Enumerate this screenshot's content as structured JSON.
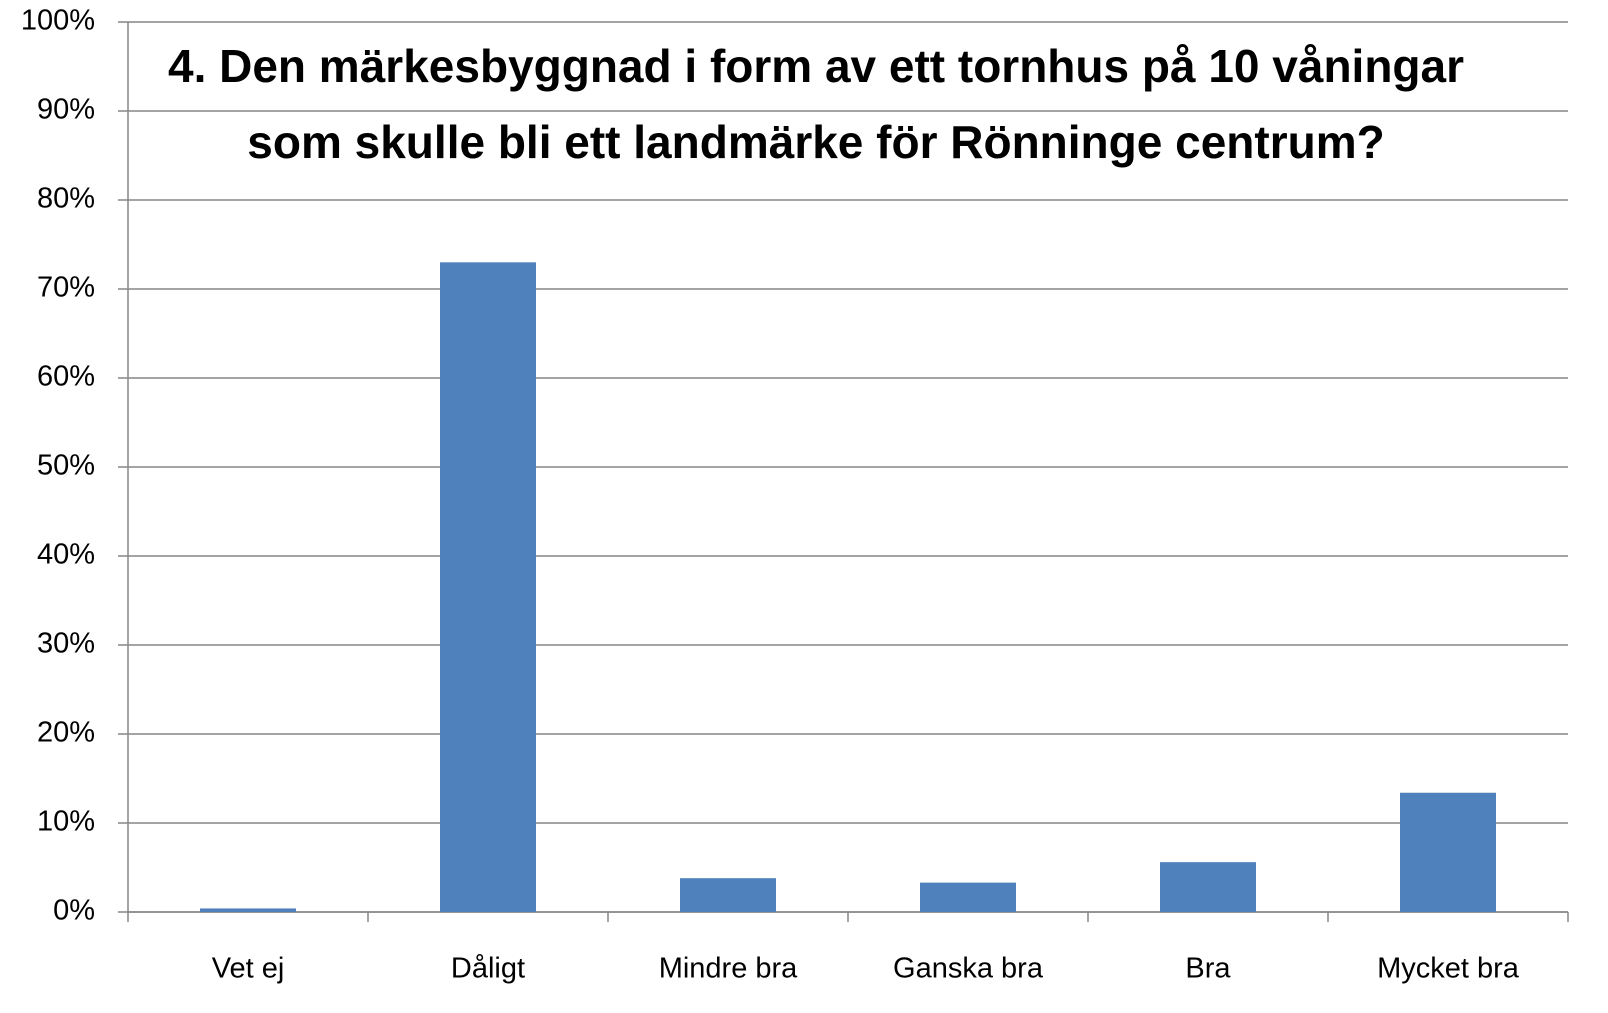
{
  "chart_data": {
    "type": "bar",
    "title": "4. Den märkesbyggnad i form av ett tornhus på 10 våningar som skulle bli ett landmärke för Rönninge centrum?",
    "categories": [
      "Vet ej",
      "Dåligt",
      "Mindre bra",
      "Ganska bra",
      "Bra",
      "Mycket bra"
    ],
    "values": [
      0.4,
      73,
      3.8,
      3.3,
      5.6,
      13.4
    ],
    "color": "#4f81bd",
    "ylim": [
      0,
      100
    ],
    "yticks": [
      {
        "value": 0,
        "label": "0%"
      },
      {
        "value": 10,
        "label": "10%"
      },
      {
        "value": 20,
        "label": "20%"
      },
      {
        "value": 30,
        "label": "30%"
      },
      {
        "value": 40,
        "label": "40%"
      },
      {
        "value": 50,
        "label": "50%"
      },
      {
        "value": 60,
        "label": "60%"
      },
      {
        "value": 70,
        "label": "70%"
      },
      {
        "value": 80,
        "label": "80%"
      },
      {
        "value": 90,
        "label": "90%"
      },
      {
        "value": 100,
        "label": "100%"
      }
    ],
    "grid": true
  }
}
